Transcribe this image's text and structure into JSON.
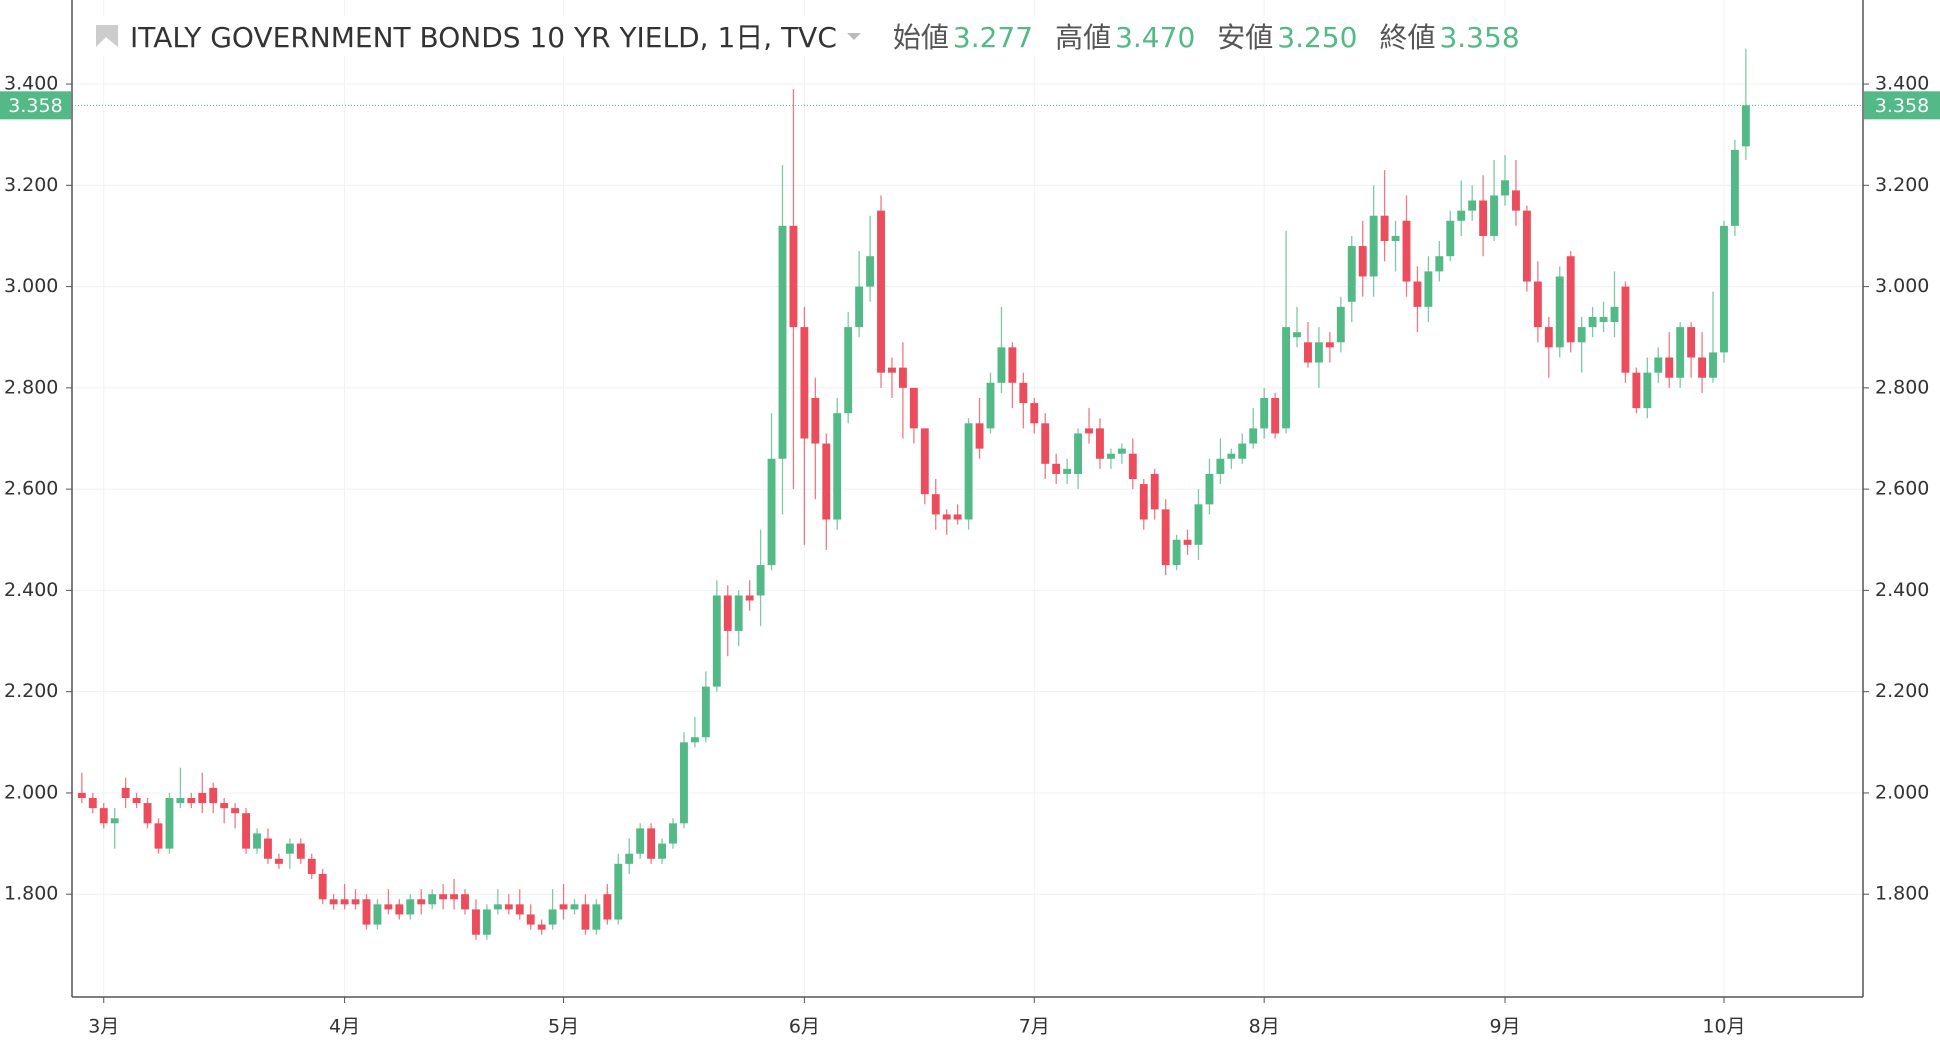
{
  "header": {
    "title": "ITALY GOVERNMENT BONDS 10 YR YIELD, 1日, TVC",
    "ohlc": [
      {
        "label": "始値",
        "value": "3.277"
      },
      {
        "label": "高値",
        "value": "3.470"
      },
      {
        "label": "安値",
        "value": "3.250"
      },
      {
        "label": "終値",
        "value": "3.358"
      }
    ]
  },
  "chart_data": {
    "type": "candlestick",
    "up_color": "#53b987",
    "down_color": "#eb4d5c",
    "grid": true,
    "xlim": [
      -0.9,
      162.7
    ],
    "ylim": [
      1.597,
      3.566
    ],
    "xticks": [
      {
        "value": 2,
        "label": "3月"
      },
      {
        "value": 24,
        "label": "4月"
      },
      {
        "value": 44,
        "label": "5月"
      },
      {
        "value": 66,
        "label": "6月"
      },
      {
        "value": 87,
        "label": "7月"
      },
      {
        "value": 108,
        "label": "8月"
      },
      {
        "value": 130,
        "label": "9月"
      },
      {
        "value": 150,
        "label": "10月"
      }
    ],
    "yticks": [
      {
        "value": 1.8,
        "label": "1.800"
      },
      {
        "value": 2.0,
        "label": "2.000"
      },
      {
        "value": 2.2,
        "label": "2.200"
      },
      {
        "value": 2.4,
        "label": "2.400"
      },
      {
        "value": 2.6,
        "label": "2.600"
      },
      {
        "value": 2.8,
        "label": "2.800"
      },
      {
        "value": 3.0,
        "label": "3.000"
      },
      {
        "value": 3.2,
        "label": "3.200"
      },
      {
        "value": 3.4,
        "label": "3.400"
      }
    ],
    "last_price": {
      "value": 3.358,
      "label": "3.358"
    },
    "open": [
      2.0,
      1.99,
      1.97,
      1.94,
      2.01,
      1.99,
      1.98,
      1.94,
      1.89,
      1.98,
      1.99,
      2.0,
      2.01,
      1.98,
      1.97,
      1.96,
      1.89,
      1.91,
      1.87,
      1.88,
      1.9,
      1.87,
      1.84,
      1.79,
      1.79,
      1.79,
      1.79,
      1.74,
      1.78,
      1.78,
      1.76,
      1.79,
      1.78,
      1.8,
      1.8,
      1.8,
      1.77,
      1.72,
      1.77,
      1.78,
      1.78,
      1.76,
      1.74,
      1.74,
      1.78,
      1.77,
      1.78,
      1.73,
      1.8,
      1.75,
      1.86,
      1.88,
      1.93,
      1.87,
      1.9,
      1.94,
      2.1,
      2.11,
      2.21,
      2.39,
      2.32,
      2.39,
      2.39,
      2.45,
      2.66,
      3.12,
      2.92,
      2.78,
      2.69,
      2.54,
      2.75,
      2.92,
      3.0,
      3.15,
      2.84,
      2.84,
      2.8,
      2.72,
      2.59,
      2.55,
      2.55,
      2.54,
      2.73,
      2.72,
      2.81,
      2.88,
      2.81,
      2.77,
      2.73,
      2.65,
      2.63,
      2.63,
      2.72,
      2.72,
      2.66,
      2.67,
      2.67,
      2.61,
      2.63,
      2.56,
      2.45,
      2.5,
      2.49,
      2.57,
      2.63,
      2.66,
      2.66,
      2.69,
      2.72,
      2.78,
      2.72,
      2.9,
      2.89,
      2.85,
      2.89,
      2.89,
      2.97,
      3.08,
      3.02,
      3.14,
      3.09,
      3.13,
      3.01,
      2.96,
      3.03,
      3.06,
      3.13,
      3.15,
      3.17,
      3.1,
      3.18,
      3.19,
      3.15,
      3.01,
      2.92,
      2.88,
      3.06,
      2.89,
      2.92,
      2.93,
      2.93,
      3.0,
      2.83,
      2.76,
      2.83,
      2.86,
      2.82,
      2.92,
      2.86,
      2.82,
      2.87,
      3.12,
      3.277
    ],
    "high": [
      2.04,
      2.0,
      1.98,
      1.97,
      2.03,
      2.0,
      1.99,
      1.95,
      2.0,
      2.05,
      2.0,
      2.04,
      2.02,
      1.99,
      1.98,
      1.97,
      1.93,
      1.93,
      1.88,
      1.91,
      1.91,
      1.88,
      1.85,
      1.8,
      1.82,
      1.81,
      1.8,
      1.79,
      1.81,
      1.79,
      1.8,
      1.81,
      1.81,
      1.82,
      1.83,
      1.81,
      1.79,
      1.78,
      1.81,
      1.8,
      1.81,
      1.78,
      1.75,
      1.81,
      1.82,
      1.79,
      1.8,
      1.79,
      1.82,
      1.88,
      1.91,
      1.94,
      1.94,
      1.91,
      1.95,
      2.12,
      2.15,
      2.24,
      2.42,
      2.41,
      2.4,
      2.42,
      2.52,
      2.75,
      3.24,
      3.39,
      2.96,
      2.82,
      2.71,
      2.78,
      2.95,
      3.07,
      3.14,
      3.18,
      2.86,
      2.89,
      2.8,
      2.72,
      2.62,
      2.56,
      2.57,
      2.74,
      2.78,
      2.83,
      2.96,
      2.89,
      2.83,
      2.78,
      2.75,
      2.67,
      2.66,
      2.72,
      2.76,
      2.74,
      2.68,
      2.69,
      2.7,
      2.62,
      2.64,
      2.58,
      2.51,
      2.52,
      2.6,
      2.66,
      2.7,
      2.68,
      2.71,
      2.76,
      2.8,
      2.79,
      3.11,
      2.96,
      2.93,
      2.92,
      2.91,
      2.98,
      3.1,
      3.13,
      3.2,
      3.23,
      3.13,
      3.18,
      3.04,
      3.06,
      3.09,
      3.15,
      3.21,
      3.2,
      3.22,
      3.25,
      3.26,
      3.25,
      3.16,
      3.05,
      2.94,
      3.04,
      3.07,
      2.94,
      2.96,
      2.97,
      3.03,
      3.01,
      2.84,
      2.86,
      2.88,
      2.91,
      2.93,
      2.93,
      2.91,
      2.99,
      3.13,
      3.29,
      3.47
    ],
    "low": [
      1.98,
      1.96,
      1.93,
      1.89,
      1.97,
      1.97,
      1.93,
      1.88,
      1.88,
      1.97,
      1.97,
      1.96,
      1.96,
      1.94,
      1.93,
      1.88,
      1.88,
      1.86,
      1.85,
      1.85,
      1.86,
      1.83,
      1.78,
      1.77,
      1.77,
      1.77,
      1.73,
      1.73,
      1.76,
      1.75,
      1.75,
      1.76,
      1.77,
      1.77,
      1.77,
      1.76,
      1.71,
      1.71,
      1.76,
      1.76,
      1.75,
      1.73,
      1.72,
      1.73,
      1.75,
      1.76,
      1.72,
      1.72,
      1.74,
      1.74,
      1.84,
      1.87,
      1.86,
      1.86,
      1.89,
      1.93,
      2.09,
      2.1,
      2.2,
      2.27,
      2.29,
      2.36,
      2.33,
      2.44,
      2.55,
      2.6,
      2.49,
      2.58,
      2.48,
      2.52,
      2.73,
      2.9,
      2.97,
      2.8,
      2.78,
      2.7,
      2.69,
      2.57,
      2.52,
      2.51,
      2.53,
      2.52,
      2.66,
      2.71,
      2.79,
      2.76,
      2.72,
      2.71,
      2.62,
      2.61,
      2.61,
      2.6,
      2.69,
      2.64,
      2.64,
      2.65,
      2.6,
      2.52,
      2.54,
      2.43,
      2.44,
      2.47,
      2.46,
      2.55,
      2.61,
      2.64,
      2.65,
      2.68,
      2.7,
      2.7,
      2.71,
      2.88,
      2.84,
      2.8,
      2.85,
      2.87,
      2.93,
      2.98,
      2.98,
      3.05,
      3.03,
      2.98,
      2.91,
      2.93,
      3.01,
      3.05,
      3.1,
      3.13,
      3.06,
      3.09,
      3.16,
      3.12,
      2.99,
      2.89,
      2.82,
      2.86,
      2.87,
      2.83,
      2.9,
      2.91,
      2.9,
      2.81,
      2.75,
      2.74,
      2.81,
      2.8,
      2.8,
      2.82,
      2.79,
      2.81,
      2.85,
      3.1,
      3.25
    ],
    "close": [
      1.99,
      1.97,
      1.94,
      1.95,
      1.99,
      1.98,
      1.94,
      1.89,
      1.99,
      1.99,
      1.98,
      1.98,
      1.98,
      1.97,
      1.96,
      1.89,
      1.92,
      1.87,
      1.86,
      1.9,
      1.87,
      1.84,
      1.79,
      1.78,
      1.78,
      1.78,
      1.74,
      1.78,
      1.77,
      1.76,
      1.79,
      1.78,
      1.8,
      1.79,
      1.79,
      1.77,
      1.72,
      1.77,
      1.78,
      1.77,
      1.76,
      1.74,
      1.73,
      1.77,
      1.77,
      1.78,
      1.73,
      1.78,
      1.75,
      1.86,
      1.88,
      1.93,
      1.87,
      1.9,
      1.94,
      2.1,
      2.11,
      2.21,
      2.39,
      2.32,
      2.39,
      2.38,
      2.45,
      2.66,
      3.12,
      2.92,
      2.7,
      2.69,
      2.54,
      2.75,
      2.92,
      3.0,
      3.06,
      2.83,
      2.83,
      2.8,
      2.72,
      2.59,
      2.55,
      2.54,
      2.54,
      2.73,
      2.68,
      2.81,
      2.88,
      2.81,
      2.77,
      2.73,
      2.65,
      2.63,
      2.64,
      2.71,
      2.71,
      2.66,
      2.67,
      2.68,
      2.62,
      2.54,
      2.56,
      2.45,
      2.5,
      2.49,
      2.57,
      2.63,
      2.66,
      2.67,
      2.69,
      2.72,
      2.78,
      2.71,
      2.92,
      2.91,
      2.85,
      2.89,
      2.88,
      2.96,
      3.08,
      3.02,
      3.14,
      3.09,
      3.1,
      3.01,
      2.96,
      3.03,
      3.06,
      3.13,
      3.15,
      3.17,
      3.1,
      3.18,
      3.21,
      3.15,
      3.01,
      2.92,
      2.88,
      3.02,
      2.89,
      2.92,
      2.94,
      2.94,
      2.96,
      2.83,
      2.76,
      2.83,
      2.86,
      2.82,
      2.92,
      2.86,
      2.82,
      2.87,
      3.12,
      3.27,
      3.358
    ]
  }
}
